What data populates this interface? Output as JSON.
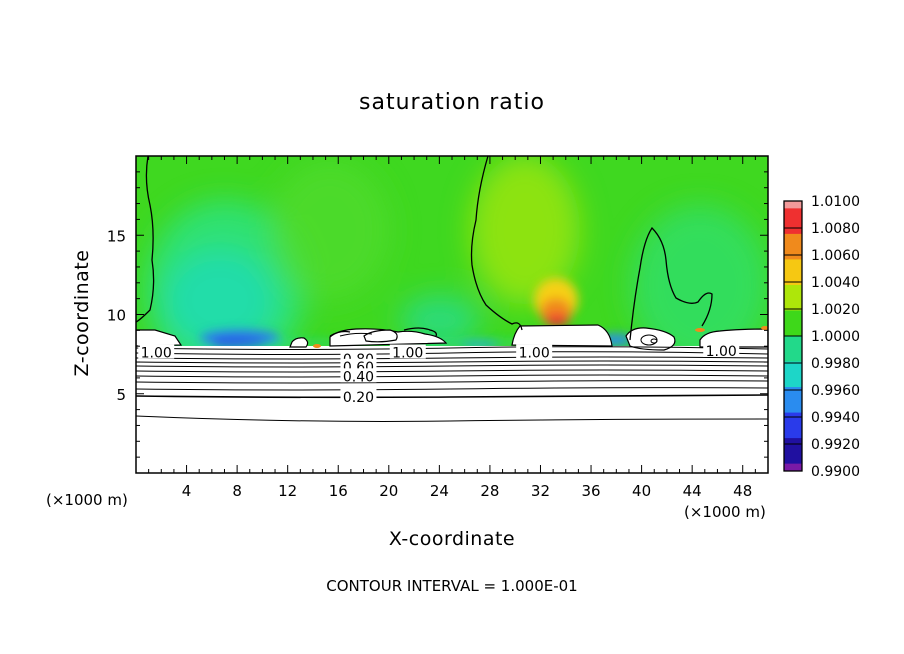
{
  "chart_data": {
    "type": "heatmap",
    "title": "saturation ratio",
    "xlabel": "X-coordinate",
    "ylabel": "Z-coordinate",
    "x_unit_left": "(×1000 m)",
    "x_unit_right": "(×1000 m)",
    "xlim": [
      0,
      50
    ],
    "ylim": [
      0,
      20
    ],
    "x_ticks": [
      "4",
      "8",
      "12",
      "16",
      "20",
      "24",
      "28",
      "32",
      "36",
      "40",
      "44",
      "48"
    ],
    "x_tick_values": [
      4,
      8,
      12,
      16,
      20,
      24,
      28,
      32,
      36,
      40,
      44,
      48
    ],
    "y_ticks": [
      "5",
      "10",
      "15"
    ],
    "y_tick_values": [
      5,
      10,
      15
    ],
    "colorbar": {
      "levels": [
        "1.0100",
        "1.0080",
        "1.0060",
        "1.0040",
        "1.0020",
        "1.0000",
        "0.9980",
        "0.9960",
        "0.9940",
        "0.9920",
        "0.9900"
      ],
      "colors": [
        "#f29a9a",
        "#ef3030",
        "#f08a1c",
        "#f6c812",
        "#aee60a",
        "#3ed81a",
        "#22d98a",
        "#1dd6c8",
        "#2a8cef",
        "#2a3bea",
        "#2010a0",
        "#7a1aa6"
      ]
    },
    "contour_labels": [
      {
        "text": "1.00",
        "x": 1.6,
        "y": 7.6
      },
      {
        "text": "0.80",
        "x": 17.6,
        "y": 7.2
      },
      {
        "text": "1.00",
        "x": 21.5,
        "y": 7.6
      },
      {
        "text": "0.60",
        "x": 17.6,
        "y": 6.7
      },
      {
        "text": "0.40",
        "x": 17.6,
        "y": 6.1
      },
      {
        "text": "1.00",
        "x": 31.5,
        "y": 7.6
      },
      {
        "text": "1.00",
        "x": 46.3,
        "y": 7.7
      },
      {
        "text": "0.20",
        "x": 17.6,
        "y": 4.8
      }
    ],
    "contour_interval": "CONTOUR INTERVAL = 1.000E-01"
  }
}
